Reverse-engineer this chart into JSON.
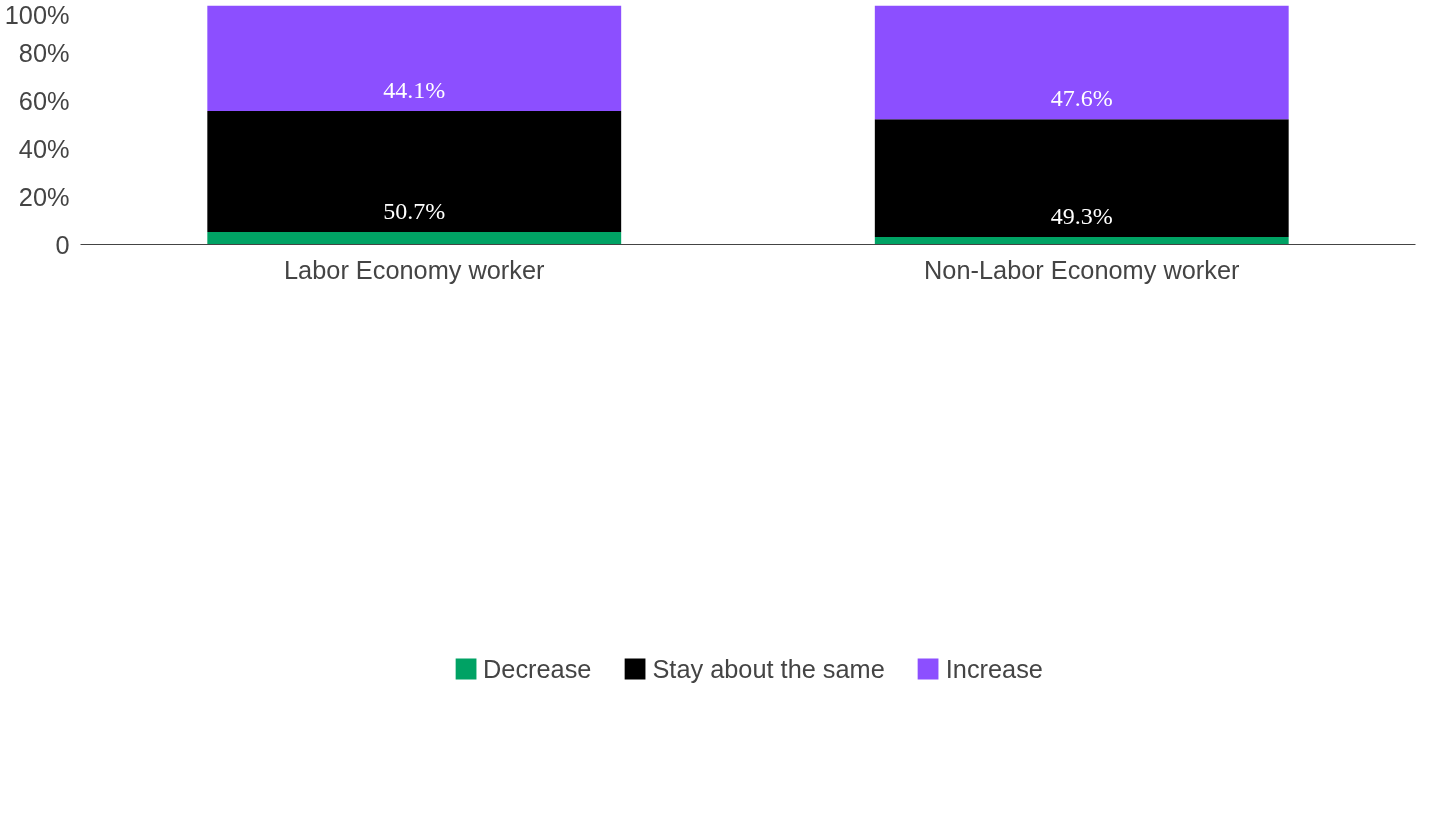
{
  "chart_data": {
    "type": "bar",
    "stacked": true,
    "categories": [
      "Labor Economy worker",
      "Non-Labor Economy worker"
    ],
    "series": [
      {
        "name": "Decrease",
        "color": "#00a264",
        "values": [
          5.2,
          3.1
        ]
      },
      {
        "name": "Stay about the same",
        "color": "#000000",
        "values": [
          50.7,
          49.3
        ],
        "value_labels": [
          "50.7%",
          "49.3%"
        ]
      },
      {
        "name": "Increase",
        "color": "#8c4fff",
        "values": [
          44.1,
          47.6
        ],
        "value_labels": [
          "44.1%",
          "47.6%"
        ]
      }
    ],
    "ylim": [
      0,
      100
    ],
    "yticks": [
      {
        "value": 0,
        "label": "0"
      },
      {
        "value": 20,
        "label": "20%"
      },
      {
        "value": 40,
        "label": "40%"
      },
      {
        "value": 60,
        "label": "60%"
      },
      {
        "value": 80,
        "label": "80%"
      },
      {
        "value": 100,
        "label": "100%"
      }
    ],
    "grid": false,
    "legend": "bottom"
  }
}
